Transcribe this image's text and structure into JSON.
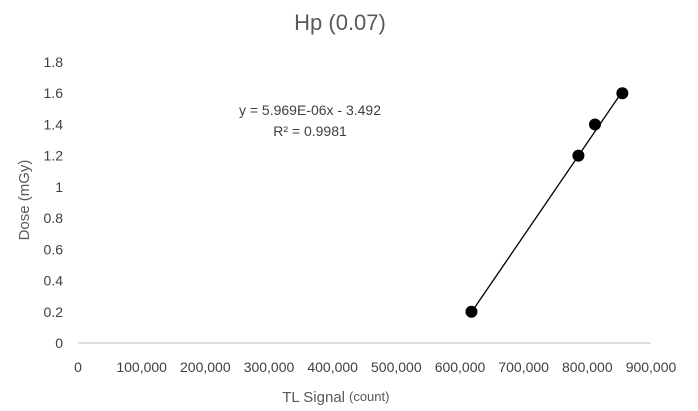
{
  "chart_data": {
    "type": "scatter",
    "title": "Hp (0.07)",
    "xlabel": "TL Signal",
    "xlabel_unit": "(count)",
    "ylabel": "Dose (mGy)",
    "xlim": [
      0,
      900000
    ],
    "ylim": [
      0,
      1.8
    ],
    "x_ticks": [
      "0",
      "100,000",
      "200,000",
      "300,000",
      "400,000",
      "500,000",
      "600,000",
      "700,000",
      "800,000",
      "900,000"
    ],
    "y_ticks": [
      "0",
      "0.2",
      "0.4",
      "0.6",
      "0.8",
      "1",
      "1.2",
      "1.4",
      "1.6",
      "1.8"
    ],
    "points": [
      {
        "x": 618000,
        "y": 0.2
      },
      {
        "x": 786000,
        "y": 1.2
      },
      {
        "x": 812000,
        "y": 1.4
      },
      {
        "x": 855000,
        "y": 1.6
      }
    ],
    "trendline": {
      "equation": "y = 5.969E-06x - 3.492",
      "r_squared": "R² = 0.9981",
      "slope": 5.969e-06,
      "intercept": -3.492,
      "x_range": [
        618000,
        855000
      ]
    },
    "grid": false,
    "legend": "none",
    "marker_color": "#000000",
    "line_color": "#000000"
  }
}
